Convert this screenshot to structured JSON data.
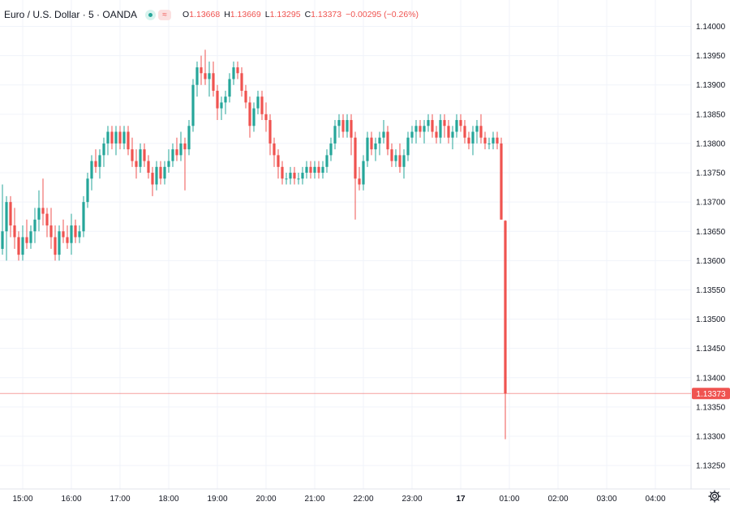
{
  "header": {
    "symbol": "Euro / U.S. Dollar · 5 · OANDA",
    "open_label": "O",
    "open": "1.13668",
    "high_label": "H",
    "high": "1.13669",
    "low_label": "L",
    "low": "1.13295",
    "close_label": "C",
    "close": "1.13373",
    "change": "−0.00295 (−0.26%)",
    "wave_badge": "≈"
  },
  "colors": {
    "up": "#26a69a",
    "down": "#ef5350",
    "grid": "#f0f3fa",
    "text": "#131722"
  },
  "chart_data": {
    "type": "candlestick",
    "y_ticks": [
      "1.13250",
      "1.13300",
      "1.13350",
      "1.13400",
      "1.13450",
      "1.13500",
      "1.13550",
      "1.13600",
      "1.13650",
      "1.13700",
      "1.13750",
      "1.13800",
      "1.13850",
      "1.13900",
      "1.13950",
      "1.14000"
    ],
    "x_ticks": [
      "15:00",
      "16:00",
      "17:00",
      "18:00",
      "19:00",
      "20:00",
      "21:00",
      "22:00",
      "23:00",
      "17",
      "01:00",
      "02:00",
      "03:00",
      "04:00"
    ],
    "ylim": [
      1.1321,
      1.14045
    ],
    "last_price": "1.13373",
    "grid": true,
    "candles": [
      {
        "t": "14:35",
        "o": 1.1362,
        "h": 1.1373,
        "l": 1.1361,
        "c": 1.1365
      },
      {
        "t": "14:40",
        "o": 1.1365,
        "h": 1.1371,
        "l": 1.136,
        "c": 1.137
      },
      {
        "t": "14:45",
        "o": 1.137,
        "h": 1.1371,
        "l": 1.1364,
        "c": 1.1366
      },
      {
        "t": "14:50",
        "o": 1.1366,
        "h": 1.1369,
        "l": 1.1362,
        "c": 1.1364
      },
      {
        "t": "14:55",
        "o": 1.1364,
        "h": 1.1365,
        "l": 1.136,
        "c": 1.1361
      },
      {
        "t": "15:00",
        "o": 1.1361,
        "h": 1.1366,
        "l": 1.136,
        "c": 1.1364
      },
      {
        "t": "15:05",
        "o": 1.1364,
        "h": 1.1367,
        "l": 1.1362,
        "c": 1.1363
      },
      {
        "t": "15:10",
        "o": 1.1363,
        "h": 1.1366,
        "l": 1.1362,
        "c": 1.1365
      },
      {
        "t": "15:15",
        "o": 1.1365,
        "h": 1.1369,
        "l": 1.1363,
        "c": 1.1367
      },
      {
        "t": "15:20",
        "o": 1.1367,
        "h": 1.1372,
        "l": 1.1365,
        "c": 1.1369
      },
      {
        "t": "15:25",
        "o": 1.1369,
        "h": 1.1374,
        "l": 1.1366,
        "c": 1.1368
      },
      {
        "t": "15:30",
        "o": 1.1368,
        "h": 1.1369,
        "l": 1.1364,
        "c": 1.1366
      },
      {
        "t": "15:35",
        "o": 1.1366,
        "h": 1.1369,
        "l": 1.1362,
        "c": 1.1364
      },
      {
        "t": "15:40",
        "o": 1.1364,
        "h": 1.1366,
        "l": 1.136,
        "c": 1.1361
      },
      {
        "t": "15:45",
        "o": 1.1361,
        "h": 1.1366,
        "l": 1.136,
        "c": 1.1365
      },
      {
        "t": "15:50",
        "o": 1.1365,
        "h": 1.1367,
        "l": 1.1363,
        "c": 1.1364
      },
      {
        "t": "15:55",
        "o": 1.1364,
        "h": 1.1366,
        "l": 1.1362,
        "c": 1.1363
      },
      {
        "t": "16:00",
        "o": 1.1363,
        "h": 1.1368,
        "l": 1.1361,
        "c": 1.1366
      },
      {
        "t": "16:05",
        "o": 1.1366,
        "h": 1.1367,
        "l": 1.1363,
        "c": 1.1364
      },
      {
        "t": "16:10",
        "o": 1.1364,
        "h": 1.1366,
        "l": 1.1363,
        "c": 1.1365
      },
      {
        "t": "16:15",
        "o": 1.1365,
        "h": 1.1371,
        "l": 1.1364,
        "c": 1.137
      },
      {
        "t": "16:20",
        "o": 1.137,
        "h": 1.1375,
        "l": 1.1369,
        "c": 1.1374
      },
      {
        "t": "16:25",
        "o": 1.1374,
        "h": 1.1378,
        "l": 1.1372,
        "c": 1.1377
      },
      {
        "t": "16:30",
        "o": 1.1377,
        "h": 1.1379,
        "l": 1.1375,
        "c": 1.1376
      },
      {
        "t": "16:35",
        "o": 1.1376,
        "h": 1.1379,
        "l": 1.1374,
        "c": 1.1378
      },
      {
        "t": "16:40",
        "o": 1.1378,
        "h": 1.1381,
        "l": 1.1376,
        "c": 1.138
      },
      {
        "t": "16:45",
        "o": 1.138,
        "h": 1.1383,
        "l": 1.1378,
        "c": 1.1382
      },
      {
        "t": "16:50",
        "o": 1.1382,
        "h": 1.1383,
        "l": 1.1379,
        "c": 1.138
      },
      {
        "t": "16:55",
        "o": 1.138,
        "h": 1.1383,
        "l": 1.1378,
        "c": 1.1382
      },
      {
        "t": "17:00",
        "o": 1.1382,
        "h": 1.1383,
        "l": 1.1379,
        "c": 1.138
      },
      {
        "t": "17:05",
        "o": 1.138,
        "h": 1.1383,
        "l": 1.1379,
        "c": 1.1382
      },
      {
        "t": "17:10",
        "o": 1.1382,
        "h": 1.1383,
        "l": 1.1378,
        "c": 1.1379
      },
      {
        "t": "17:15",
        "o": 1.1379,
        "h": 1.1381,
        "l": 1.1376,
        "c": 1.1377
      },
      {
        "t": "17:20",
        "o": 1.1377,
        "h": 1.1379,
        "l": 1.1374,
        "c": 1.1376
      },
      {
        "t": "17:25",
        "o": 1.1376,
        "h": 1.138,
        "l": 1.1375,
        "c": 1.1379
      },
      {
        "t": "17:30",
        "o": 1.1379,
        "h": 1.138,
        "l": 1.1376,
        "c": 1.1377
      },
      {
        "t": "17:35",
        "o": 1.1377,
        "h": 1.1378,
        "l": 1.1374,
        "c": 1.1375
      },
      {
        "t": "17:40",
        "o": 1.1375,
        "h": 1.1376,
        "l": 1.1371,
        "c": 1.1373
      },
      {
        "t": "17:45",
        "o": 1.1373,
        "h": 1.1377,
        "l": 1.1372,
        "c": 1.1376
      },
      {
        "t": "17:50",
        "o": 1.1376,
        "h": 1.1377,
        "l": 1.1373,
        "c": 1.1374
      },
      {
        "t": "17:55",
        "o": 1.1374,
        "h": 1.1377,
        "l": 1.1373,
        "c": 1.1376
      },
      {
        "t": "18:00",
        "o": 1.1376,
        "h": 1.1379,
        "l": 1.1375,
        "c": 1.1377
      },
      {
        "t": "18:05",
        "o": 1.1377,
        "h": 1.138,
        "l": 1.1376,
        "c": 1.1379
      },
      {
        "t": "18:10",
        "o": 1.1379,
        "h": 1.1381,
        "l": 1.1377,
        "c": 1.1378
      },
      {
        "t": "18:15",
        "o": 1.1378,
        "h": 1.1382,
        "l": 1.1377,
        "c": 1.138
      },
      {
        "t": "18:20",
        "o": 1.138,
        "h": 1.1381,
        "l": 1.1372,
        "c": 1.1379
      },
      {
        "t": "18:25",
        "o": 1.1379,
        "h": 1.1384,
        "l": 1.1378,
        "c": 1.1383
      },
      {
        "t": "18:30",
        "o": 1.1383,
        "h": 1.1391,
        "l": 1.1382,
        "c": 1.139
      },
      {
        "t": "18:35",
        "o": 1.139,
        "h": 1.1394,
        "l": 1.1388,
        "c": 1.1393
      },
      {
        "t": "18:40",
        "o": 1.1393,
        "h": 1.1395,
        "l": 1.139,
        "c": 1.1392
      },
      {
        "t": "18:45",
        "o": 1.1392,
        "h": 1.1396,
        "l": 1.139,
        "c": 1.1391
      },
      {
        "t": "18:50",
        "o": 1.1391,
        "h": 1.1394,
        "l": 1.1388,
        "c": 1.1392
      },
      {
        "t": "18:55",
        "o": 1.1392,
        "h": 1.1394,
        "l": 1.1388,
        "c": 1.1389
      },
      {
        "t": "19:00",
        "o": 1.1389,
        "h": 1.139,
        "l": 1.1384,
        "c": 1.1386
      },
      {
        "t": "19:05",
        "o": 1.1386,
        "h": 1.1388,
        "l": 1.1384,
        "c": 1.1387
      },
      {
        "t": "19:10",
        "o": 1.1387,
        "h": 1.1389,
        "l": 1.1385,
        "c": 1.1388
      },
      {
        "t": "19:15",
        "o": 1.1388,
        "h": 1.1392,
        "l": 1.1387,
        "c": 1.1391
      },
      {
        "t": "19:20",
        "o": 1.1391,
        "h": 1.1394,
        "l": 1.139,
        "c": 1.1393
      },
      {
        "t": "19:25",
        "o": 1.1393,
        "h": 1.1394,
        "l": 1.1391,
        "c": 1.1392
      },
      {
        "t": "19:30",
        "o": 1.1392,
        "h": 1.1393,
        "l": 1.1388,
        "c": 1.1389
      },
      {
        "t": "19:35",
        "o": 1.1389,
        "h": 1.139,
        "l": 1.1386,
        "c": 1.1387
      },
      {
        "t": "19:40",
        "o": 1.1387,
        "h": 1.1388,
        "l": 1.1381,
        "c": 1.1383
      },
      {
        "t": "19:45",
        "o": 1.1383,
        "h": 1.1387,
        "l": 1.1382,
        "c": 1.1386
      },
      {
        "t": "19:50",
        "o": 1.1386,
        "h": 1.1389,
        "l": 1.1385,
        "c": 1.1388
      },
      {
        "t": "19:55",
        "o": 1.1388,
        "h": 1.1389,
        "l": 1.1384,
        "c": 1.1385
      },
      {
        "t": "20:00",
        "o": 1.1385,
        "h": 1.1387,
        "l": 1.1382,
        "c": 1.1384
      },
      {
        "t": "20:05",
        "o": 1.1384,
        "h": 1.1385,
        "l": 1.1378,
        "c": 1.138
      },
      {
        "t": "20:10",
        "o": 1.138,
        "h": 1.1381,
        "l": 1.1376,
        "c": 1.1378
      },
      {
        "t": "20:15",
        "o": 1.1378,
        "h": 1.1379,
        "l": 1.1374,
        "c": 1.1376
      },
      {
        "t": "20:20",
        "o": 1.1376,
        "h": 1.1377,
        "l": 1.1373,
        "c": 1.1374
      },
      {
        "t": "20:25",
        "o": 1.1374,
        "h": 1.1375,
        "l": 1.1373,
        "c": 1.1374
      },
      {
        "t": "20:30",
        "o": 1.1374,
        "h": 1.1376,
        "l": 1.1373,
        "c": 1.1375
      },
      {
        "t": "20:35",
        "o": 1.1375,
        "h": 1.1376,
        "l": 1.1373,
        "c": 1.1374
      },
      {
        "t": "20:40",
        "o": 1.1374,
        "h": 1.1375,
        "l": 1.1373,
        "c": 1.1374
      },
      {
        "t": "20:45",
        "o": 1.1374,
        "h": 1.1376,
        "l": 1.1373,
        "c": 1.1375
      },
      {
        "t": "20:50",
        "o": 1.1375,
        "h": 1.1377,
        "l": 1.1374,
        "c": 1.1376
      },
      {
        "t": "20:55",
        "o": 1.1376,
        "h": 1.1377,
        "l": 1.1374,
        "c": 1.1375
      },
      {
        "t": "21:00",
        "o": 1.1375,
        "h": 1.1377,
        "l": 1.1374,
        "c": 1.1376
      },
      {
        "t": "21:05",
        "o": 1.1376,
        "h": 1.1377,
        "l": 1.1374,
        "c": 1.1375
      },
      {
        "t": "21:10",
        "o": 1.1375,
        "h": 1.1377,
        "l": 1.1374,
        "c": 1.1376
      },
      {
        "t": "21:15",
        "o": 1.1376,
        "h": 1.1379,
        "l": 1.1375,
        "c": 1.1378
      },
      {
        "t": "21:20",
        "o": 1.1378,
        "h": 1.1381,
        "l": 1.1377,
        "c": 1.138
      },
      {
        "t": "21:25",
        "o": 1.138,
        "h": 1.1384,
        "l": 1.1379,
        "c": 1.1383
      },
      {
        "t": "21:30",
        "o": 1.1383,
        "h": 1.1385,
        "l": 1.1381,
        "c": 1.1384
      },
      {
        "t": "21:35",
        "o": 1.1384,
        "h": 1.1385,
        "l": 1.1381,
        "c": 1.1382
      },
      {
        "t": "21:40",
        "o": 1.1382,
        "h": 1.1385,
        "l": 1.1381,
        "c": 1.1384
      },
      {
        "t": "21:45",
        "o": 1.1384,
        "h": 1.1385,
        "l": 1.1378,
        "c": 1.1381
      },
      {
        "t": "21:50",
        "o": 1.1381,
        "h": 1.1382,
        "l": 1.1367,
        "c": 1.1374
      },
      {
        "t": "21:55",
        "o": 1.1374,
        "h": 1.1376,
        "l": 1.1372,
        "c": 1.1373
      },
      {
        "t": "22:00",
        "o": 1.1373,
        "h": 1.1378,
        "l": 1.1372,
        "c": 1.1377
      },
      {
        "t": "22:05",
        "o": 1.1377,
        "h": 1.1382,
        "l": 1.1376,
        "c": 1.1381
      },
      {
        "t": "22:10",
        "o": 1.1381,
        "h": 1.1382,
        "l": 1.1378,
        "c": 1.1379
      },
      {
        "t": "22:15",
        "o": 1.1379,
        "h": 1.1381,
        "l": 1.1377,
        "c": 1.138
      },
      {
        "t": "22:20",
        "o": 1.138,
        "h": 1.1382,
        "l": 1.1378,
        "c": 1.1381
      },
      {
        "t": "22:25",
        "o": 1.1381,
        "h": 1.1384,
        "l": 1.138,
        "c": 1.1382
      },
      {
        "t": "22:30",
        "o": 1.1382,
        "h": 1.1383,
        "l": 1.1378,
        "c": 1.1379
      },
      {
        "t": "22:35",
        "o": 1.1379,
        "h": 1.138,
        "l": 1.1376,
        "c": 1.1377
      },
      {
        "t": "22:40",
        "o": 1.1377,
        "h": 1.1379,
        "l": 1.1376,
        "c": 1.1378
      },
      {
        "t": "22:45",
        "o": 1.1378,
        "h": 1.138,
        "l": 1.1375,
        "c": 1.1376
      },
      {
        "t": "22:50",
        "o": 1.1376,
        "h": 1.1379,
        "l": 1.1374,
        "c": 1.1378
      },
      {
        "t": "22:55",
        "o": 1.1378,
        "h": 1.1382,
        "l": 1.1377,
        "c": 1.1381
      },
      {
        "t": "23:00",
        "o": 1.1381,
        "h": 1.1383,
        "l": 1.138,
        "c": 1.1382
      },
      {
        "t": "23:05",
        "o": 1.1382,
        "h": 1.1384,
        "l": 1.138,
        "c": 1.1383
      },
      {
        "t": "23:10",
        "o": 1.1383,
        "h": 1.1384,
        "l": 1.1381,
        "c": 1.1382
      },
      {
        "t": "23:15",
        "o": 1.1382,
        "h": 1.1384,
        "l": 1.138,
        "c": 1.1383
      },
      {
        "t": "23:20",
        "o": 1.1383,
        "h": 1.1385,
        "l": 1.1382,
        "c": 1.1384
      },
      {
        "t": "23:25",
        "o": 1.1384,
        "h": 1.1385,
        "l": 1.1381,
        "c": 1.1382
      },
      {
        "t": "23:30",
        "o": 1.1382,
        "h": 1.1383,
        "l": 1.138,
        "c": 1.1381
      },
      {
        "t": "23:35",
        "o": 1.1381,
        "h": 1.1385,
        "l": 1.138,
        "c": 1.1384
      },
      {
        "t": "23:40",
        "o": 1.1384,
        "h": 1.1385,
        "l": 1.1381,
        "c": 1.1383
      },
      {
        "t": "23:45",
        "o": 1.1383,
        "h": 1.1384,
        "l": 1.138,
        "c": 1.1381
      },
      {
        "t": "23:50",
        "o": 1.1381,
        "h": 1.1383,
        "l": 1.1379,
        "c": 1.1382
      },
      {
        "t": "23:55",
        "o": 1.1382,
        "h": 1.1385,
        "l": 1.1381,
        "c": 1.1384
      },
      {
        "t": "00:00",
        "o": 1.1384,
        "h": 1.1385,
        "l": 1.1382,
        "c": 1.1383
      },
      {
        "t": "00:05",
        "o": 1.1383,
        "h": 1.1384,
        "l": 1.138,
        "c": 1.1381
      },
      {
        "t": "00:10",
        "o": 1.1381,
        "h": 1.1382,
        "l": 1.1379,
        "c": 1.138
      },
      {
        "t": "00:15",
        "o": 1.138,
        "h": 1.1383,
        "l": 1.1378,
        "c": 1.1382
      },
      {
        "t": "00:20",
        "o": 1.1382,
        "h": 1.1384,
        "l": 1.138,
        "c": 1.1383
      },
      {
        "t": "00:25",
        "o": 1.1383,
        "h": 1.1385,
        "l": 1.138,
        "c": 1.1381
      },
      {
        "t": "00:30",
        "o": 1.1381,
        "h": 1.1382,
        "l": 1.1379,
        "c": 1.138
      },
      {
        "t": "00:35",
        "o": 1.138,
        "h": 1.1381,
        "l": 1.1379,
        "c": 1.138
      },
      {
        "t": "00:40",
        "o": 1.138,
        "h": 1.1382,
        "l": 1.1379,
        "c": 1.1381
      },
      {
        "t": "00:45",
        "o": 1.1381,
        "h": 1.1382,
        "l": 1.1379,
        "c": 1.138
      },
      {
        "t": "00:50",
        "o": 1.138,
        "h": 1.1381,
        "l": 1.1367,
        "c": 1.1367
      },
      {
        "t": "00:55",
        "o": 1.13668,
        "h": 1.13669,
        "l": 1.13295,
        "c": 1.13373
      }
    ]
  }
}
